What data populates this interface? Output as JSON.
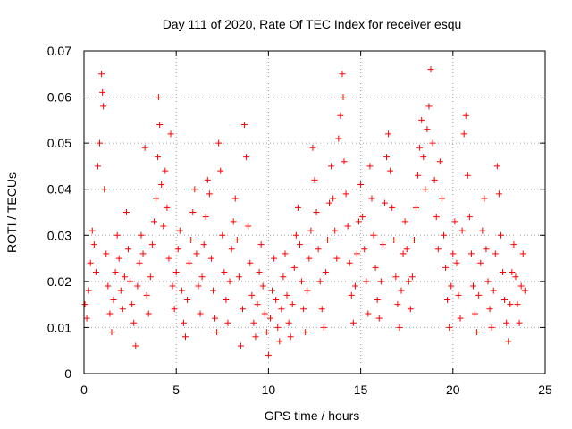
{
  "chart_data": {
    "type": "scatter",
    "title": "Day 111 of 2020, Rate Of TEC Index for receiver esqu",
    "xlabel": "GPS time / hours",
    "ylabel": "ROTI / TECUs",
    "xlim": [
      0,
      25
    ],
    "ylim": [
      0,
      0.07
    ],
    "x_ticks": [
      0,
      5,
      10,
      15,
      20,
      25
    ],
    "y_ticks": [
      0,
      0.01,
      0.02,
      0.03,
      0.04,
      0.05,
      0.06,
      0.07
    ],
    "x_tick_labels": [
      "0",
      "5",
      "10",
      "15",
      "20",
      "25"
    ],
    "y_tick_labels": [
      "0",
      "0.01",
      "0.02",
      "0.03",
      "0.04",
      "0.05",
      "0.06",
      "0.07"
    ],
    "grid": true,
    "marker": "+",
    "color": "#ff0000",
    "series": [
      {
        "name": "ROTI",
        "points": [
          [
            0.05,
            0.015
          ],
          [
            0.15,
            0.012
          ],
          [
            0.25,
            0.018
          ],
          [
            0.35,
            0.024
          ],
          [
            0.45,
            0.031
          ],
          [
            0.55,
            0.028
          ],
          [
            0.65,
            0.022
          ],
          [
            0.75,
            0.045
          ],
          [
            0.85,
            0.05
          ],
          [
            0.95,
            0.065
          ],
          [
            1.0,
            0.061
          ],
          [
            1.05,
            0.058
          ],
          [
            1.1,
            0.04
          ],
          [
            1.2,
            0.026
          ],
          [
            1.3,
            0.019
          ],
          [
            1.4,
            0.013
          ],
          [
            1.5,
            0.009
          ],
          [
            1.6,
            0.016
          ],
          [
            1.7,
            0.022
          ],
          [
            1.8,
            0.03
          ],
          [
            1.9,
            0.025
          ],
          [
            2.0,
            0.018
          ],
          [
            2.1,
            0.014
          ],
          [
            2.2,
            0.021
          ],
          [
            2.3,
            0.035
          ],
          [
            2.4,
            0.027
          ],
          [
            2.5,
            0.02
          ],
          [
            2.6,
            0.015
          ],
          [
            2.7,
            0.011
          ],
          [
            2.8,
            0.006
          ],
          [
            2.9,
            0.019
          ],
          [
            3.0,
            0.024
          ],
          [
            3.1,
            0.03
          ],
          [
            3.2,
            0.026
          ],
          [
            3.3,
            0.049
          ],
          [
            3.4,
            0.017
          ],
          [
            3.5,
            0.013
          ],
          [
            3.6,
            0.021
          ],
          [
            3.7,
            0.028
          ],
          [
            3.8,
            0.033
          ],
          [
            3.9,
            0.038
          ],
          [
            4.0,
            0.047
          ],
          [
            4.05,
            0.06
          ],
          [
            4.1,
            0.054
          ],
          [
            4.2,
            0.041
          ],
          [
            4.3,
            0.032
          ],
          [
            4.4,
            0.044
          ],
          [
            4.5,
            0.036
          ],
          [
            4.6,
            0.025
          ],
          [
            4.7,
            0.052
          ],
          [
            4.8,
            0.019
          ],
          [
            4.9,
            0.014
          ],
          [
            5.0,
            0.022
          ],
          [
            5.1,
            0.027
          ],
          [
            5.2,
            0.031
          ],
          [
            5.3,
            0.018
          ],
          [
            5.4,
            0.011
          ],
          [
            5.5,
            0.008
          ],
          [
            5.6,
            0.016
          ],
          [
            5.7,
            0.024
          ],
          [
            5.8,
            0.029
          ],
          [
            5.9,
            0.035
          ],
          [
            6.0,
            0.04
          ],
          [
            6.1,
            0.026
          ],
          [
            6.2,
            0.019
          ],
          [
            6.3,
            0.013
          ],
          [
            6.4,
            0.021
          ],
          [
            6.5,
            0.028
          ],
          [
            6.6,
            0.034
          ],
          [
            6.7,
            0.042
          ],
          [
            6.8,
            0.039
          ],
          [
            6.9,
            0.025
          ],
          [
            7.0,
            0.018
          ],
          [
            7.1,
            0.012
          ],
          [
            7.2,
            0.009
          ],
          [
            7.3,
            0.05
          ],
          [
            7.4,
            0.044
          ],
          [
            7.5,
            0.03
          ],
          [
            7.6,
            0.022
          ],
          [
            7.7,
            0.016
          ],
          [
            7.8,
            0.011
          ],
          [
            7.9,
            0.02
          ],
          [
            8.0,
            0.027
          ],
          [
            8.1,
            0.033
          ],
          [
            8.2,
            0.038
          ],
          [
            8.3,
            0.029
          ],
          [
            8.4,
            0.021
          ],
          [
            8.5,
            0.006
          ],
          [
            8.6,
            0.014
          ],
          [
            8.7,
            0.054
          ],
          [
            8.8,
            0.047
          ],
          [
            8.9,
            0.032
          ],
          [
            9.0,
            0.024
          ],
          [
            9.1,
            0.017
          ],
          [
            9.2,
            0.011
          ],
          [
            9.3,
            0.008
          ],
          [
            9.4,
            0.015
          ],
          [
            9.5,
            0.022
          ],
          [
            9.6,
            0.028
          ],
          [
            9.7,
            0.019
          ],
          [
            9.8,
            0.013
          ],
          [
            9.9,
            0.009
          ],
          [
            10.0,
            0.004
          ],
          [
            10.1,
            0.012
          ],
          [
            10.2,
            0.018
          ],
          [
            10.3,
            0.025
          ],
          [
            10.4,
            0.016
          ],
          [
            10.5,
            0.01
          ],
          [
            10.6,
            0.007
          ],
          [
            10.7,
            0.014
          ],
          [
            10.8,
            0.021
          ],
          [
            10.9,
            0.026
          ],
          [
            11.0,
            0.017
          ],
          [
            11.1,
            0.011
          ],
          [
            11.2,
            0.008
          ],
          [
            11.3,
            0.015
          ],
          [
            11.4,
            0.023
          ],
          [
            11.5,
            0.03
          ],
          [
            11.6,
            0.036
          ],
          [
            11.7,
            0.028
          ],
          [
            11.8,
            0.02
          ],
          [
            11.9,
            0.014
          ],
          [
            12.0,
            0.009
          ],
          [
            12.1,
            0.018
          ],
          [
            12.2,
            0.025
          ],
          [
            12.3,
            0.031
          ],
          [
            12.4,
            0.049
          ],
          [
            12.5,
            0.042
          ],
          [
            12.6,
            0.035
          ],
          [
            12.7,
            0.027
          ],
          [
            12.8,
            0.02
          ],
          [
            12.9,
            0.014
          ],
          [
            13.0,
            0.01
          ],
          [
            13.1,
            0.022
          ],
          [
            13.2,
            0.029
          ],
          [
            13.3,
            0.037
          ],
          [
            13.4,
            0.045
          ],
          [
            13.5,
            0.038
          ],
          [
            13.6,
            0.031
          ],
          [
            13.7,
            0.025
          ],
          [
            13.8,
            0.051
          ],
          [
            13.9,
            0.056
          ],
          [
            14.0,
            0.065
          ],
          [
            14.05,
            0.06
          ],
          [
            14.1,
            0.046
          ],
          [
            14.2,
            0.039
          ],
          [
            14.3,
            0.032
          ],
          [
            14.4,
            0.024
          ],
          [
            14.5,
            0.017
          ],
          [
            14.6,
            0.011
          ],
          [
            14.7,
            0.019
          ],
          [
            14.8,
            0.026
          ],
          [
            14.9,
            0.033
          ],
          [
            15.0,
            0.041
          ],
          [
            15.1,
            0.034
          ],
          [
            15.2,
            0.027
          ],
          [
            15.3,
            0.02
          ],
          [
            15.4,
            0.013
          ],
          [
            15.5,
            0.045
          ],
          [
            15.6,
            0.038
          ],
          [
            15.7,
            0.03
          ],
          [
            15.8,
            0.023
          ],
          [
            15.9,
            0.016
          ],
          [
            16.0,
            0.012
          ],
          [
            16.1,
            0.02
          ],
          [
            16.2,
            0.028
          ],
          [
            16.3,
            0.037
          ],
          [
            16.4,
            0.047
          ],
          [
            16.5,
            0.052
          ],
          [
            16.6,
            0.044
          ],
          [
            16.7,
            0.036
          ],
          [
            16.8,
            0.029
          ],
          [
            16.9,
            0.021
          ],
          [
            17.0,
            0.015
          ],
          [
            17.1,
            0.01
          ],
          [
            17.2,
            0.018
          ],
          [
            17.3,
            0.026
          ],
          [
            17.4,
            0.033
          ],
          [
            17.5,
            0.027
          ],
          [
            17.6,
            0.02
          ],
          [
            17.7,
            0.014
          ],
          [
            17.8,
            0.021
          ],
          [
            17.9,
            0.029
          ],
          [
            18.0,
            0.036
          ],
          [
            18.1,
            0.043
          ],
          [
            18.2,
            0.049
          ],
          [
            18.3,
            0.055
          ],
          [
            18.4,
            0.047
          ],
          [
            18.5,
            0.04
          ],
          [
            18.6,
            0.053
          ],
          [
            18.7,
            0.058
          ],
          [
            18.8,
            0.066
          ],
          [
            18.9,
            0.05
          ],
          [
            19.0,
            0.042
          ],
          [
            19.1,
            0.034
          ],
          [
            19.2,
            0.027
          ],
          [
            19.3,
            0.046
          ],
          [
            19.4,
            0.038
          ],
          [
            19.5,
            0.03
          ],
          [
            19.6,
            0.023
          ],
          [
            19.7,
            0.016
          ],
          [
            19.8,
            0.01
          ],
          [
            19.9,
            0.019
          ],
          [
            20.0,
            0.026
          ],
          [
            20.1,
            0.033
          ],
          [
            20.2,
            0.024
          ],
          [
            20.3,
            0.017
          ],
          [
            20.4,
            0.012
          ],
          [
            20.5,
            0.031
          ],
          [
            20.6,
            0.052
          ],
          [
            20.7,
            0.056
          ],
          [
            20.8,
            0.043
          ],
          [
            20.9,
            0.034
          ],
          [
            21.0,
            0.026
          ],
          [
            21.1,
            0.019
          ],
          [
            21.2,
            0.013
          ],
          [
            21.3,
            0.009
          ],
          [
            21.4,
            0.017
          ],
          [
            21.5,
            0.024
          ],
          [
            21.6,
            0.031
          ],
          [
            21.7,
            0.038
          ],
          [
            21.8,
            0.027
          ],
          [
            21.9,
            0.02
          ],
          [
            22.0,
            0.014
          ],
          [
            22.1,
            0.01
          ],
          [
            22.2,
            0.018
          ],
          [
            22.3,
            0.026
          ],
          [
            22.4,
            0.045
          ],
          [
            22.5,
            0.039
          ],
          [
            22.6,
            0.03
          ],
          [
            22.7,
            0.022
          ],
          [
            22.8,
            0.016
          ],
          [
            22.9,
            0.011
          ],
          [
            23.0,
            0.007
          ],
          [
            23.1,
            0.015
          ],
          [
            23.2,
            0.022
          ],
          [
            23.3,
            0.028
          ],
          [
            23.4,
            0.021
          ],
          [
            23.5,
            0.015
          ],
          [
            23.6,
            0.011
          ],
          [
            23.7,
            0.019
          ],
          [
            23.8,
            0.026
          ],
          [
            23.9,
            0.018
          ]
        ]
      }
    ]
  }
}
